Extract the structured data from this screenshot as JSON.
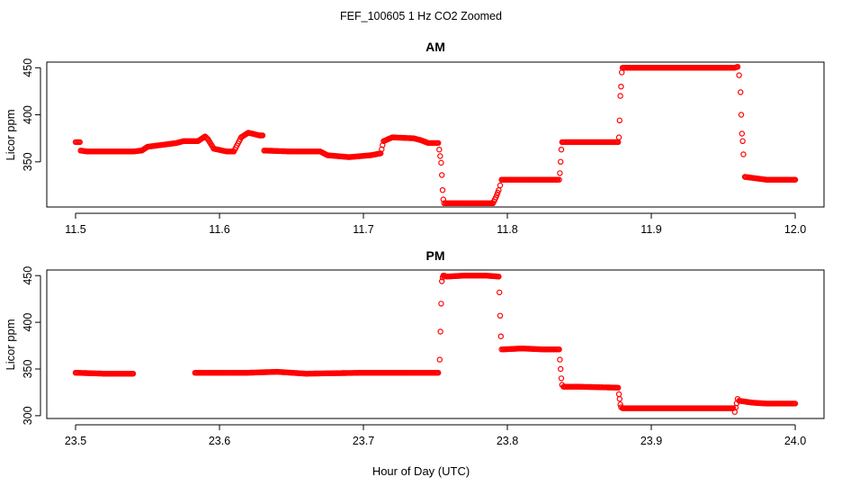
{
  "figure": {
    "title": "FEF_100605  1 Hz CO2 Zoomed",
    "xlabel": "Hour of Day (UTC)",
    "point_color": "#ff0000"
  },
  "chart_data": [
    {
      "type": "scatter",
      "title": "AM",
      "xlabel": "",
      "ylabel": "Licor ppm",
      "xlim": [
        11.5,
        12.0
      ],
      "ylim": [
        302,
        456
      ],
      "xticks": [
        11.5,
        11.6,
        11.7,
        11.8,
        11.9,
        12.0
      ],
      "xtick_labels": [
        "11.5",
        "11.6",
        "11.7",
        "11.8",
        "11.9",
        "12.0"
      ],
      "yticks": [
        350,
        400,
        450
      ],
      "ytick_labels": [
        "350",
        "400",
        "450"
      ],
      "grid": false,
      "series": [
        {
          "color": "#ff0000",
          "x": [
            11.5,
            11.503,
            11.5035,
            11.508,
            11.52,
            11.54,
            11.546,
            11.55,
            11.56,
            11.57,
            11.575,
            11.585,
            11.59,
            11.592,
            11.596,
            11.605,
            11.61,
            11.615,
            11.62,
            11.628,
            11.63,
            11.631,
            11.65,
            11.67,
            11.675,
            11.69,
            11.705,
            11.712,
            11.714,
            11.72,
            11.735,
            11.74,
            11.745,
            11.752,
            11.754,
            11.7545,
            11.755,
            11.7555,
            11.756,
            11.757,
            11.77,
            11.785,
            11.79,
            11.792,
            11.794,
            11.795,
            11.796,
            11.8,
            11.815,
            11.835,
            11.836,
            11.8365,
            11.837,
            11.8375,
            11.838,
            11.85,
            11.865,
            11.877,
            11.8775,
            11.878,
            11.8785,
            11.879,
            11.8795,
            11.88,
            11.9,
            11.92,
            11.94,
            11.958,
            11.96,
            11.961,
            11.962,
            11.9625,
            11.963,
            11.9635,
            11.964,
            11.965,
            11.98,
            12.0
          ],
          "y": [
            371,
            371,
            362,
            361,
            361,
            361,
            362,
            366,
            368,
            370,
            372,
            372,
            377,
            374,
            364,
            361,
            361,
            376,
            381,
            378,
            378,
            362,
            361,
            361,
            357,
            355,
            357,
            359,
            372,
            376,
            375,
            373,
            370,
            370,
            349,
            336,
            320,
            310,
            306,
            306,
            306,
            306,
            306,
            312,
            320,
            325,
            331,
            331,
            331,
            331,
            331,
            338,
            350,
            363,
            371,
            371,
            371,
            371,
            376,
            394,
            420,
            430,
            445,
            450,
            450,
            450,
            450,
            450,
            451,
            442,
            424,
            400,
            380,
            372,
            358,
            334,
            331,
            331
          ]
        }
      ]
    },
    {
      "type": "scatter",
      "title": "PM",
      "xlabel": "",
      "ylabel": "Licor ppm",
      "xlim": [
        23.5,
        24.0
      ],
      "ylim": [
        297,
        456
      ],
      "xticks": [
        23.5,
        23.6,
        23.7,
        23.8,
        23.9,
        24.0
      ],
      "xtick_labels": [
        "23.5",
        "23.6",
        "23.7",
        "23.8",
        "23.9",
        "24.0"
      ],
      "yticks": [
        300,
        350,
        400,
        450
      ],
      "ytick_labels": [
        "300",
        "350",
        "400",
        "450"
      ],
      "grid": false,
      "series": [
        {
          "color": "#ff0000",
          "segments": [
            {
              "x": [
                23.5,
                23.52,
                23.54
              ],
              "y": [
                346,
                345,
                345
              ]
            },
            {
              "x": [
                23.583,
                23.6,
                23.62,
                23.64,
                23.66,
                23.7,
                23.73,
                23.752,
                23.753,
                23.7535,
                23.754,
                23.7545,
                23.755,
                23.7555,
                23.756,
                23.758,
                23.77,
                23.785,
                23.794,
                23.7945,
                23.795,
                23.7955,
                23.796,
                23.797,
                23.81,
                23.825,
                23.836,
                23.8365,
                23.837,
                23.8375,
                23.838,
                23.839,
                23.85,
                23.877,
                23.8775,
                23.878,
                23.8785,
                23.879,
                23.88,
                23.9,
                23.92,
                23.94,
                23.957,
                23.958,
                23.96,
                23.961,
                23.97,
                23.98,
                24.0
              ],
              "y": [
                346,
                346,
                346,
                347,
                345,
                346,
                346,
                346,
                360,
                390,
                420,
                444,
                448,
                450,
                450,
                449,
                450,
                450,
                449,
                432,
                407,
                385,
                371,
                371,
                372,
                371,
                371,
                360,
                350,
                340,
                333,
                331,
                331,
                330,
                323,
                318,
                312,
                309,
                308,
                308,
                308,
                308,
                308,
                304,
                318,
                316,
                314,
                313,
                313
              ]
            }
          ]
        }
      ]
    }
  ]
}
